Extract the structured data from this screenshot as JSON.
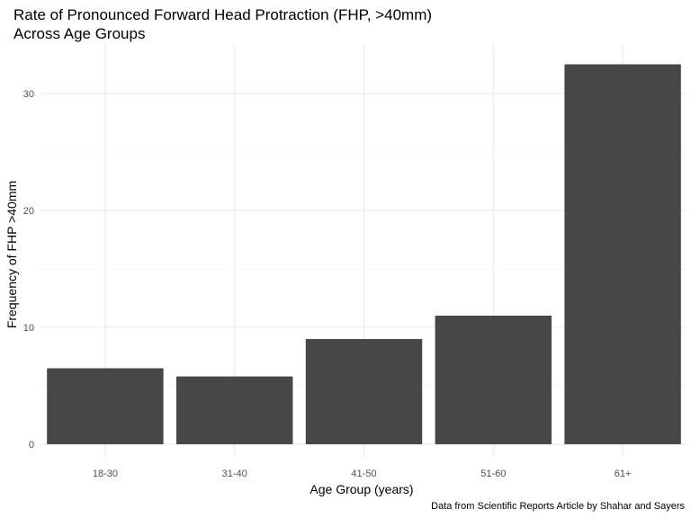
{
  "chart_data": {
    "type": "bar",
    "title": "Rate of Pronounced Forward Head Protraction (FHP, >40mm)",
    "subtitle": "Across Age Groups",
    "xlabel": "Age Group (years)",
    "ylabel": "Frequency of FHP >40mm",
    "categories": [
      "18-30",
      "31-40",
      "41-50",
      "51-60",
      "61+"
    ],
    "values": [
      6.5,
      5.8,
      9.0,
      11.0,
      32.5
    ],
    "ylim": [
      0,
      35
    ],
    "yticks": [
      0,
      10,
      20,
      30
    ],
    "grid": true,
    "legend": "none",
    "caption": "Data from Scientific Reports Article by Shahar and Sayers",
    "colors": {
      "bar": "#474747",
      "grid_major": "#e8e8e8",
      "grid_minor": "#f2f2f2"
    }
  }
}
